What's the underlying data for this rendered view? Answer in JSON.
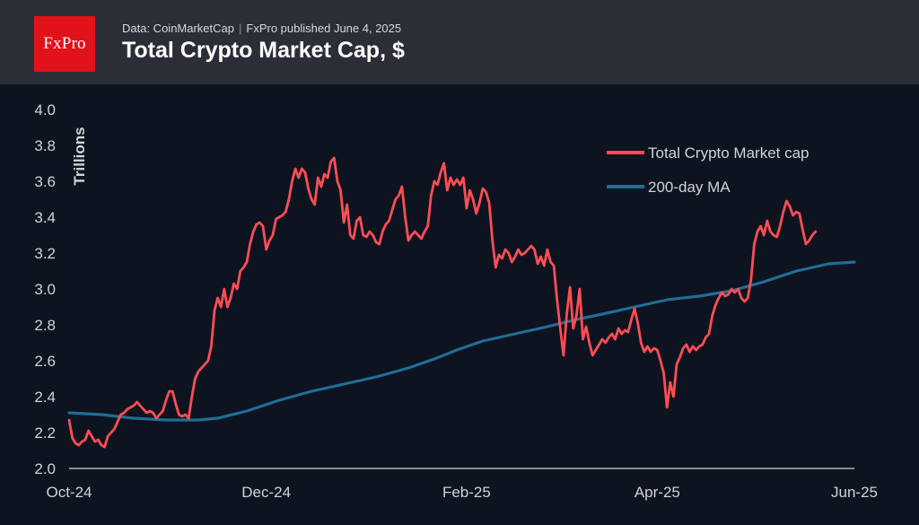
{
  "header": {
    "logo_text": "FxPro",
    "source": "Data: CoinMarketCap",
    "published": "FxPro published June 4, 2025",
    "title": "Total Crypto Market Cap, $"
  },
  "colors": {
    "background": "#0e1320",
    "header_bg": "#2b2e36",
    "logo_bg": "#e2121b",
    "market_cap_line": "#ff4d55",
    "ma_line": "#1f6e95",
    "text": "#ffffff",
    "axis_text": "#d0d3d8"
  },
  "chart_data": {
    "type": "line",
    "title": "Total Crypto Market Cap, $",
    "xlabel": "",
    "ylabel": "Trillions",
    "ylim": [
      2.0,
      4.0
    ],
    "yticks": [
      "4.0",
      "3.8",
      "3.6",
      "3.4",
      "3.2",
      "3.0",
      "2.8",
      "2.6",
      "2.4",
      "2.2",
      "2.0"
    ],
    "xtick_labels": [
      {
        "label": "Oct-24",
        "x": 0
      },
      {
        "label": "Dec-24",
        "x": 61
      },
      {
        "label": "Feb-25",
        "x": 123
      },
      {
        "label": "Apr-25",
        "x": 182
      },
      {
        "label": "Jun-25",
        "x": 243
      }
    ],
    "x_range": [
      0,
      243
    ],
    "legend_position": "top-right",
    "grid": false,
    "series": [
      {
        "name": "Total Crypto Market cap",
        "color": "#ff4d55",
        "points": [
          [
            0,
            2.27
          ],
          [
            1,
            2.17
          ],
          [
            2,
            2.14
          ],
          [
            3,
            2.13
          ],
          [
            4,
            2.15
          ],
          [
            5,
            2.16
          ],
          [
            6,
            2.21
          ],
          [
            7,
            2.18
          ],
          [
            8,
            2.15
          ],
          [
            9,
            2.16
          ],
          [
            10,
            2.13
          ],
          [
            11,
            2.12
          ],
          [
            12,
            2.18
          ],
          [
            13,
            2.2
          ],
          [
            14,
            2.22
          ],
          [
            15,
            2.26
          ],
          [
            16,
            2.3
          ],
          [
            17,
            2.31
          ],
          [
            18,
            2.33
          ],
          [
            19,
            2.34
          ],
          [
            20,
            2.35
          ],
          [
            21,
            2.37
          ],
          [
            22,
            2.35
          ],
          [
            23,
            2.33
          ],
          [
            24,
            2.31
          ],
          [
            25,
            2.32
          ],
          [
            26,
            2.31
          ],
          [
            27,
            2.28
          ],
          [
            28,
            2.3
          ],
          [
            29,
            2.32
          ],
          [
            30,
            2.38
          ],
          [
            31,
            2.43
          ],
          [
            32,
            2.43
          ],
          [
            33,
            2.36
          ],
          [
            34,
            2.3
          ],
          [
            35,
            2.29
          ],
          [
            36,
            2.3
          ],
          [
            37,
            2.28
          ],
          [
            38,
            2.4
          ],
          [
            39,
            2.5
          ],
          [
            40,
            2.54
          ],
          [
            41,
            2.56
          ],
          [
            42,
            2.58
          ],
          [
            43,
            2.6
          ],
          [
            44,
            2.68
          ],
          [
            45,
            2.88
          ],
          [
            46,
            2.95
          ],
          [
            47,
            2.9
          ],
          [
            48,
            3.0
          ],
          [
            49,
            2.9
          ],
          [
            50,
            2.95
          ],
          [
            51,
            3.03
          ],
          [
            52,
            3.0
          ],
          [
            53,
            3.1
          ],
          [
            54,
            3.12
          ],
          [
            55,
            3.15
          ],
          [
            56,
            3.25
          ],
          [
            57,
            3.32
          ],
          [
            58,
            3.36
          ],
          [
            59,
            3.37
          ],
          [
            60,
            3.35
          ],
          [
            61,
            3.22
          ],
          [
            62,
            3.27
          ],
          [
            63,
            3.3
          ],
          [
            64,
            3.39
          ],
          [
            65,
            3.4
          ],
          [
            66,
            3.41
          ],
          [
            67,
            3.43
          ],
          [
            68,
            3.5
          ],
          [
            69,
            3.6
          ],
          [
            70,
            3.67
          ],
          [
            71,
            3.62
          ],
          [
            72,
            3.67
          ],
          [
            73,
            3.65
          ],
          [
            74,
            3.56
          ],
          [
            75,
            3.5
          ],
          [
            76,
            3.47
          ],
          [
            77,
            3.62
          ],
          [
            78,
            3.57
          ],
          [
            79,
            3.64
          ],
          [
            80,
            3.62
          ],
          [
            81,
            3.71
          ],
          [
            82,
            3.73
          ],
          [
            83,
            3.6
          ],
          [
            84,
            3.55
          ],
          [
            85,
            3.37
          ],
          [
            86,
            3.47
          ],
          [
            87,
            3.3
          ],
          [
            88,
            3.28
          ],
          [
            89,
            3.38
          ],
          [
            90,
            3.4
          ],
          [
            91,
            3.3
          ],
          [
            92,
            3.29
          ],
          [
            93,
            3.32
          ],
          [
            94,
            3.3
          ],
          [
            95,
            3.26
          ],
          [
            96,
            3.25
          ],
          [
            97,
            3.32
          ],
          [
            98,
            3.36
          ],
          [
            99,
            3.38
          ],
          [
            100,
            3.44
          ],
          [
            101,
            3.5
          ],
          [
            102,
            3.52
          ],
          [
            103,
            3.57
          ],
          [
            104,
            3.4
          ],
          [
            105,
            3.27
          ],
          [
            106,
            3.3
          ],
          [
            107,
            3.32
          ],
          [
            108,
            3.3
          ],
          [
            109,
            3.28
          ],
          [
            110,
            3.32
          ],
          [
            111,
            3.35
          ],
          [
            112,
            3.52
          ],
          [
            113,
            3.6
          ],
          [
            114,
            3.58
          ],
          [
            115,
            3.65
          ],
          [
            116,
            3.7
          ],
          [
            117,
            3.55
          ],
          [
            118,
            3.62
          ],
          [
            119,
            3.58
          ],
          [
            120,
            3.61
          ],
          [
            121,
            3.58
          ],
          [
            122,
            3.62
          ],
          [
            123,
            3.45
          ],
          [
            124,
            3.55
          ],
          [
            125,
            3.5
          ],
          [
            126,
            3.42
          ],
          [
            127,
            3.48
          ],
          [
            128,
            3.56
          ],
          [
            129,
            3.54
          ],
          [
            130,
            3.48
          ],
          [
            131,
            3.27
          ],
          [
            132,
            3.12
          ],
          [
            133,
            3.19
          ],
          [
            134,
            3.17
          ],
          [
            135,
            3.22
          ],
          [
            136,
            3.2
          ],
          [
            137,
            3.15
          ],
          [
            138,
            3.18
          ],
          [
            139,
            3.22
          ],
          [
            140,
            3.19
          ],
          [
            141,
            3.2
          ],
          [
            142,
            3.22
          ],
          [
            143,
            3.24
          ],
          [
            144,
            3.22
          ],
          [
            145,
            3.14
          ],
          [
            146,
            3.18
          ],
          [
            147,
            3.13
          ],
          [
            148,
            3.22
          ],
          [
            149,
            3.15
          ],
          [
            150,
            3.13
          ],
          [
            151,
            2.94
          ],
          [
            152,
            2.78
          ],
          [
            153,
            2.63
          ],
          [
            154,
            2.86
          ],
          [
            155,
            3.01
          ],
          [
            156,
            2.78
          ],
          [
            157,
            2.85
          ],
          [
            158,
            3.0
          ],
          [
            159,
            2.72
          ],
          [
            160,
            2.79
          ],
          [
            161,
            2.7
          ],
          [
            162,
            2.63
          ],
          [
            163,
            2.66
          ],
          [
            164,
            2.69
          ],
          [
            165,
            2.72
          ],
          [
            166,
            2.7
          ],
          [
            167,
            2.73
          ],
          [
            168,
            2.75
          ],
          [
            169,
            2.72
          ],
          [
            170,
            2.78
          ],
          [
            171,
            2.75
          ],
          [
            172,
            2.77
          ],
          [
            173,
            2.76
          ],
          [
            174,
            2.83
          ],
          [
            175,
            2.89
          ],
          [
            176,
            2.81
          ],
          [
            177,
            2.7
          ],
          [
            178,
            2.65
          ],
          [
            179,
            2.68
          ],
          [
            180,
            2.65
          ],
          [
            181,
            2.67
          ],
          [
            182,
            2.66
          ],
          [
            183,
            2.6
          ],
          [
            184,
            2.53
          ],
          [
            185,
            2.34
          ],
          [
            186,
            2.48
          ],
          [
            187,
            2.4
          ],
          [
            188,
            2.58
          ],
          [
            189,
            2.62
          ],
          [
            190,
            2.67
          ],
          [
            191,
            2.69
          ],
          [
            192,
            2.65
          ],
          [
            193,
            2.68
          ],
          [
            194,
            2.66
          ],
          [
            195,
            2.68
          ],
          [
            196,
            2.69
          ],
          [
            197,
            2.73
          ],
          [
            198,
            2.75
          ],
          [
            199,
            2.85
          ],
          [
            200,
            2.91
          ],
          [
            201,
            2.95
          ],
          [
            202,
            2.98
          ],
          [
            203,
            2.96
          ],
          [
            204,
            2.97
          ],
          [
            205,
            3.0
          ],
          [
            206,
            2.98
          ],
          [
            207,
            3.0
          ],
          [
            208,
            2.95
          ],
          [
            209,
            2.93
          ],
          [
            210,
            2.95
          ],
          [
            211,
            3.05
          ],
          [
            212,
            3.25
          ],
          [
            213,
            3.32
          ],
          [
            214,
            3.35
          ],
          [
            215,
            3.3
          ],
          [
            216,
            3.38
          ],
          [
            217,
            3.32
          ],
          [
            218,
            3.3
          ],
          [
            219,
            3.29
          ],
          [
            220,
            3.35
          ],
          [
            221,
            3.43
          ],
          [
            222,
            3.49
          ],
          [
            223,
            3.46
          ],
          [
            224,
            3.41
          ],
          [
            225,
            3.43
          ],
          [
            226,
            3.42
          ],
          [
            227,
            3.33
          ],
          [
            228,
            3.25
          ],
          [
            229,
            3.27
          ],
          [
            230,
            3.3
          ],
          [
            231,
            3.32
          ]
        ]
      },
      {
        "name": "200-day MA",
        "color": "#1f6e95",
        "points": [
          [
            0,
            2.31
          ],
          [
            10,
            2.3
          ],
          [
            20,
            2.28
          ],
          [
            30,
            2.27
          ],
          [
            40,
            2.27
          ],
          [
            46,
            2.28
          ],
          [
            55,
            2.32
          ],
          [
            65,
            2.38
          ],
          [
            75,
            2.43
          ],
          [
            85,
            2.47
          ],
          [
            95,
            2.51
          ],
          [
            105,
            2.56
          ],
          [
            113,
            2.61
          ],
          [
            120,
            2.66
          ],
          [
            128,
            2.71
          ],
          [
            138,
            2.75
          ],
          [
            148,
            2.79
          ],
          [
            157,
            2.83
          ],
          [
            165,
            2.86
          ],
          [
            175,
            2.9
          ],
          [
            185,
            2.94
          ],
          [
            195,
            2.96
          ],
          [
            205,
            2.99
          ],
          [
            215,
            3.04
          ],
          [
            225,
            3.1
          ],
          [
            235,
            3.14
          ],
          [
            243,
            3.15
          ]
        ]
      }
    ]
  }
}
